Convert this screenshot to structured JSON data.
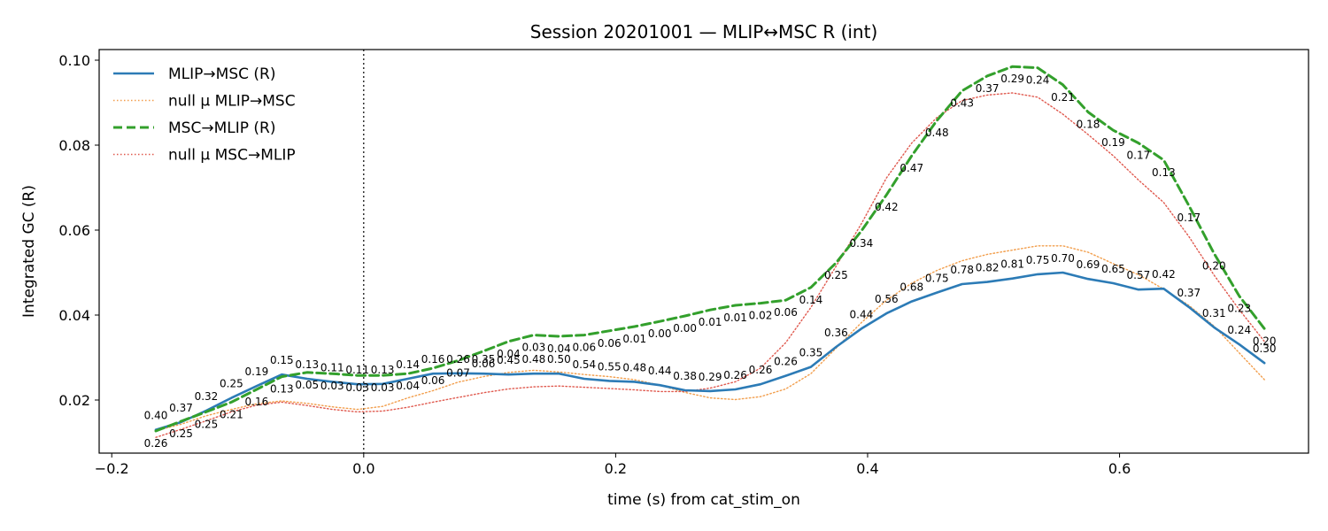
{
  "chart_data": {
    "type": "line",
    "title": "Session 20201001 — MLIP↔MSC R (int)",
    "xlabel": "time (s) from cat_stim_on",
    "ylabel": "Integrated GC (R)",
    "xlim": [
      -0.21,
      0.75
    ],
    "ylim": [
      0.0075,
      0.1025
    ],
    "x_ticks": [
      -0.2,
      0.0,
      0.2,
      0.4,
      0.6
    ],
    "x_tick_labels": [
      "−0.2",
      "0.0",
      "0.2",
      "0.4",
      "0.6"
    ],
    "y_ticks": [
      0.02,
      0.04,
      0.06,
      0.08,
      0.1
    ],
    "y_tick_labels": [
      "0.02",
      "0.04",
      "0.06",
      "0.08",
      "0.10"
    ],
    "grid": false,
    "legend_position": "upper-left",
    "event_line_x": 0.0,
    "x": [
      -0.165,
      -0.145,
      -0.125,
      -0.105,
      -0.085,
      -0.065,
      -0.045,
      -0.025,
      -0.005,
      0.015,
      0.035,
      0.055,
      0.075,
      0.095,
      0.115,
      0.135,
      0.155,
      0.175,
      0.195,
      0.215,
      0.235,
      0.255,
      0.275,
      0.295,
      0.315,
      0.335,
      0.355,
      0.375,
      0.395,
      0.415,
      0.435,
      0.455,
      0.475,
      0.495,
      0.515,
      0.535,
      0.555,
      0.575,
      0.595,
      0.615,
      0.635,
      0.655,
      0.675,
      0.695,
      0.715
    ],
    "series": [
      {
        "name": "MLIP→MSC (R)",
        "color": "#2c7bb6",
        "style": "solid",
        "values": [
          0.013,
          0.0148,
          0.0175,
          0.0205,
          0.0233,
          0.026,
          0.025,
          0.0243,
          0.0237,
          0.0238,
          0.025,
          0.0262,
          0.0263,
          0.0262,
          0.026,
          0.0262,
          0.0262,
          0.025,
          0.0245,
          0.0243,
          0.0235,
          0.0223,
          0.0221,
          0.0225,
          0.0237,
          0.0257,
          0.0278,
          0.0325,
          0.0368,
          0.0404,
          0.0432,
          0.0453,
          0.0473,
          0.0478,
          0.0486,
          0.0496,
          0.05,
          0.0485,
          0.0475,
          0.046,
          0.0462,
          0.0419,
          0.0371,
          0.0331,
          0.0287
        ]
      },
      {
        "name": "null μ MLIP→MSC",
        "color": "#f29e4c",
        "style": "dotted",
        "values": [
          0.0128,
          0.0143,
          0.0163,
          0.0178,
          0.0191,
          0.0198,
          0.0192,
          0.0184,
          0.0178,
          0.0185,
          0.0205,
          0.0222,
          0.0242,
          0.0255,
          0.0265,
          0.027,
          0.0266,
          0.026,
          0.0255,
          0.0248,
          0.0235,
          0.0218,
          0.0205,
          0.0201,
          0.0208,
          0.0226,
          0.0262,
          0.0322,
          0.0382,
          0.0435,
          0.0475,
          0.0505,
          0.0528,
          0.0543,
          0.0553,
          0.0563,
          0.0563,
          0.0548,
          0.0521,
          0.0495,
          0.0461,
          0.0423,
          0.0374,
          0.0311,
          0.0248
        ]
      },
      {
        "name": "MSC→MLIP (R)",
        "color": "#33a02c",
        "style": "dashed",
        "values": [
          0.0127,
          0.015,
          0.0172,
          0.0195,
          0.0225,
          0.0255,
          0.0265,
          0.0262,
          0.0258,
          0.0258,
          0.0262,
          0.0275,
          0.0293,
          0.0315,
          0.0338,
          0.0353,
          0.035,
          0.0353,
          0.0363,
          0.0373,
          0.0385,
          0.0398,
          0.0412,
          0.0423,
          0.0428,
          0.0435,
          0.0465,
          0.0523,
          0.0598,
          0.0683,
          0.0775,
          0.0858,
          0.0928,
          0.0963,
          0.0985,
          0.0982,
          0.0942,
          0.0878,
          0.0835,
          0.0805,
          0.0765,
          0.0658,
          0.0545,
          0.0445,
          0.0368
        ]
      },
      {
        "name": "null μ MSC→MLIP",
        "color": "#e05a4f",
        "style": "dotted",
        "values": [
          0.0112,
          0.0131,
          0.0151,
          0.0172,
          0.0188,
          0.0195,
          0.0187,
          0.0178,
          0.0172,
          0.0174,
          0.0183,
          0.0195,
          0.0206,
          0.0217,
          0.0226,
          0.0231,
          0.0233,
          0.023,
          0.0227,
          0.0224,
          0.022,
          0.022,
          0.0228,
          0.0243,
          0.0275,
          0.0335,
          0.0418,
          0.0515,
          0.0615,
          0.0723,
          0.0805,
          0.0865,
          0.0905,
          0.0918,
          0.0923,
          0.0913,
          0.0873,
          0.0825,
          0.0775,
          0.0718,
          0.0665,
          0.0585,
          0.0494,
          0.0413,
          0.0338
        ]
      }
    ],
    "annotations": {
      "mlip_to_msc_p": [
        "0.40",
        "0.37",
        "0.32",
        "0.25",
        "0.19",
        "0.15",
        "0.13",
        "0.11",
        "0.11",
        "0.13",
        "0.14",
        "0.16",
        "0.26",
        "0.35",
        "0.45",
        "0.48",
        "0.50",
        "0.54",
        "0.55",
        "0.48",
        "0.44",
        "0.38",
        "0.29",
        "0.26",
        "0.26",
        "0.26",
        "0.35",
        "0.36",
        "0.44",
        "0.56",
        "0.68",
        "0.75",
        "0.78",
        "0.82",
        "0.81",
        "0.75",
        "0.70",
        "0.69",
        "0.65",
        "0.57",
        "0.42",
        "0.37",
        "0.31",
        "0.24",
        "0.30"
      ],
      "msc_to_mlip_p": [
        "0.26",
        "0.25",
        "0.25",
        "0.21",
        "0.16",
        "0.13",
        "0.05",
        "0.03",
        "0.03",
        "0.03",
        "0.04",
        "0.06",
        "0.07",
        "0.06",
        "0.04",
        "0.03",
        "0.04",
        "0.06",
        "0.06",
        "0.01",
        "0.00",
        "0.00",
        "0.01",
        "0.01",
        "0.02",
        "0.06",
        "0.14",
        "0.25",
        "0.34",
        "0.42",
        "0.47",
        "0.48",
        "0.43",
        "0.37",
        "0.29",
        "0.24",
        "0.21",
        "0.18",
        "0.19",
        "0.17",
        "0.13",
        "0.17",
        "0.20",
        "0.23",
        "0.20"
      ]
    }
  }
}
